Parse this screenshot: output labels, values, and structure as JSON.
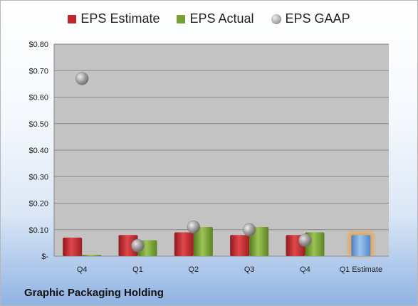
{
  "company": "Graphic Packaging Holding",
  "colors": {
    "estimate": "#c0272d",
    "actual": "#77a033",
    "gaap": "#a5a5a5",
    "next_estimate": "#6f9fd8",
    "next_estimate_glow": "#f0a040",
    "plot_bg": "#c3c3c3"
  },
  "legend": [
    {
      "label": "EPS Estimate",
      "color": "#c0272d",
      "shape": "square"
    },
    {
      "label": "EPS Actual",
      "color": "#77a033",
      "shape": "square"
    },
    {
      "label": "EPS GAAP",
      "color": "#a5a5a5",
      "shape": "circle"
    }
  ],
  "chart_data": {
    "type": "bar",
    "categories": [
      "Q4",
      "Q1",
      "Q2",
      "Q3",
      "Q4",
      "Q1 Estimate"
    ],
    "ylim": [
      0,
      0.8
    ],
    "yticks": [
      0,
      0.1,
      0.2,
      0.3,
      0.4,
      0.5,
      0.6,
      0.7,
      0.8
    ],
    "ytick_labels": [
      "$-",
      "$0.10",
      "$0.20",
      "$0.30",
      "$0.40",
      "$0.50",
      "$0.60",
      "$0.70",
      "$0.80"
    ],
    "grid": true,
    "legend_position": "top",
    "series": [
      {
        "name": "EPS Estimate",
        "type": "bar",
        "values": [
          0.07,
          0.08,
          0.09,
          0.08,
          0.08,
          0.08
        ]
      },
      {
        "name": "EPS Actual",
        "type": "bar",
        "values": [
          0.005,
          0.06,
          0.11,
          0.11,
          0.09,
          null
        ]
      },
      {
        "name": "EPS GAAP",
        "type": "scatter",
        "values": [
          0.67,
          0.04,
          0.11,
          0.1,
          0.06,
          null
        ]
      }
    ]
  }
}
